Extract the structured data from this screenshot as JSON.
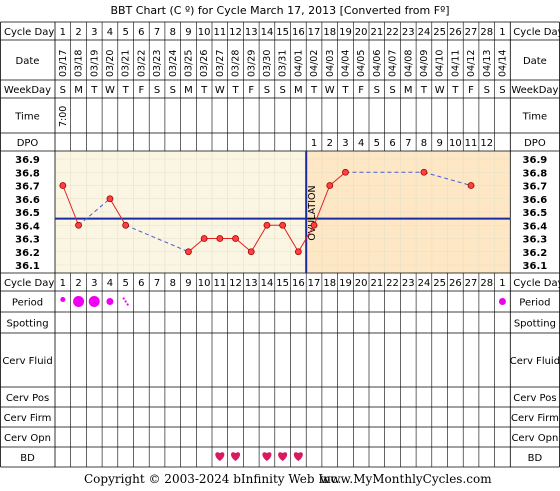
{
  "title": "BBT Chart (C º) for Cycle March 17, 2013  [Converted from Fº]",
  "labels": {
    "cycle_day": "Cycle Day",
    "date": "Date",
    "weekday": "WeekDay",
    "time": "Time",
    "dpo": "DPO",
    "period": "Period",
    "spotting": "Spotting",
    "cerv_fluid": "Cerv Fluid",
    "cerv_pos": "Cerv Pos",
    "cerv_firm": "Cerv Firm",
    "cerv_opn": "Cerv Opn",
    "bd": "BD",
    "ovulation": "OVULATION"
  },
  "cycle_days": [
    "1",
    "2",
    "3",
    "4",
    "5",
    "6",
    "7",
    "8",
    "9",
    "10",
    "11",
    "12",
    "13",
    "14",
    "15",
    "16",
    "17",
    "18",
    "19",
    "20",
    "21",
    "22",
    "23",
    "24",
    "25",
    "26",
    "27",
    "28",
    "1"
  ],
  "dates": [
    "03/17",
    "03/18",
    "03/19",
    "03/20",
    "03/21",
    "03/22",
    "03/23",
    "03/24",
    "03/25",
    "03/26",
    "03/27",
    "03/28",
    "03/29",
    "03/30",
    "03/31",
    "04/01",
    "04/02",
    "04/03",
    "04/04",
    "04/05",
    "04/06",
    "04/07",
    "04/08",
    "04/09",
    "04/10",
    "04/11",
    "04/12",
    "04/13",
    "04/14"
  ],
  "weekdays": [
    "S",
    "M",
    "T",
    "W",
    "T",
    "F",
    "S",
    "S",
    "M",
    "T",
    "W",
    "T",
    "F",
    "S",
    "S",
    "M",
    "T",
    "W",
    "T",
    "F",
    "S",
    "S",
    "M",
    "T",
    "W",
    "T",
    "F",
    "S",
    "S"
  ],
  "times": [
    "7:00"
  ],
  "dpo": [
    "1",
    "2",
    "3",
    "4",
    "5",
    "6",
    "7",
    "8",
    "9",
    "10",
    "11",
    "12"
  ],
  "colors": {
    "grid": "#000000",
    "pre_ovulation_bg": "#fbf5e3",
    "post_ovulation_bg": "#fde7c4",
    "temp_line": "#e02020",
    "temp_point": "#ff4040",
    "coverline": "#1a2aa0",
    "period_dot": "#ee00ee",
    "bd_heart": "#d81b60"
  },
  "chart_data": {
    "type": "line",
    "title": "BBT Chart (C º) for Cycle March 17, 2013  [Converted from Fº]",
    "xlabel": "Cycle Day",
    "ylabel": "",
    "x": [
      1,
      2,
      3,
      4,
      5,
      6,
      7,
      8,
      9,
      10,
      11,
      12,
      13,
      14,
      15,
      16,
      17,
      18,
      19,
      20,
      21,
      22,
      23,
      24,
      25,
      26,
      27,
      28,
      29
    ],
    "y_ticks": [
      "36.9",
      "36.8",
      "36.7",
      "36.6",
      "36.5",
      "36.4",
      "36.3",
      "36.2",
      "36.1"
    ],
    "ylim": [
      36.1,
      36.9
    ],
    "series": [
      {
        "points": [
          {
            "day": 1,
            "temp": 36.7
          },
          {
            "day": 2,
            "temp": 36.4
          },
          {
            "day": 4,
            "temp": 36.6
          },
          {
            "day": 5,
            "temp": 36.4
          },
          {
            "day": 9,
            "temp": 36.2
          },
          {
            "day": 10,
            "temp": 36.3
          },
          {
            "day": 11,
            "temp": 36.3
          },
          {
            "day": 12,
            "temp": 36.3
          },
          {
            "day": 13,
            "temp": 36.2
          },
          {
            "day": 14,
            "temp": 36.4
          },
          {
            "day": 15,
            "temp": 36.4
          },
          {
            "day": 16,
            "temp": 36.2
          },
          {
            "day": 17,
            "temp": 36.4
          },
          {
            "day": 18,
            "temp": 36.7
          },
          {
            "day": 19,
            "temp": 36.8
          },
          {
            "day": 24,
            "temp": 36.8
          },
          {
            "day": 27,
            "temp": 36.7
          }
        ],
        "solid_segments": [
          [
            1,
            2
          ],
          [
            4,
            5
          ],
          [
            9,
            10
          ],
          [
            10,
            11
          ],
          [
            11,
            12
          ],
          [
            12,
            13
          ],
          [
            13,
            14
          ],
          [
            14,
            15
          ],
          [
            15,
            16
          ],
          [
            16,
            17
          ],
          [
            17,
            18
          ],
          [
            18,
            19
          ]
        ],
        "dashed_segments": [
          [
            2,
            4
          ],
          [
            5,
            9
          ],
          [
            19,
            24
          ],
          [
            24,
            27
          ]
        ]
      }
    ],
    "coverline": 36.45,
    "ovulation_day": 16,
    "period": [
      {
        "day": 1,
        "size": "small"
      },
      {
        "day": 2,
        "size": "large"
      },
      {
        "day": 3,
        "size": "large"
      },
      {
        "day": 4,
        "size": "medium"
      },
      {
        "day": 5,
        "size": "spotting"
      },
      {
        "day": 29,
        "size": "medium"
      }
    ],
    "bd_days": [
      11,
      12,
      14,
      15,
      16
    ],
    "grid": true
  },
  "footer": {
    "copyright": "Copyright © 2003-2024 bInfinity Web Inc.",
    "site": "www.MyMonthlyCycles.com"
  }
}
